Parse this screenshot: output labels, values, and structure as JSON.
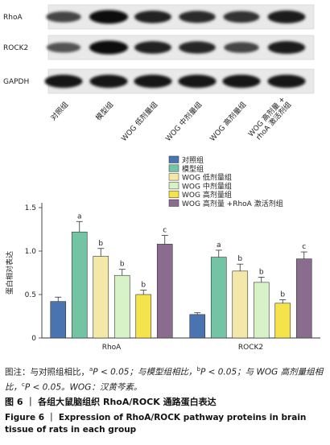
{
  "blot": {
    "rows": [
      {
        "label": "RhoA",
        "intensity": [
          0.55,
          1.0,
          0.8,
          0.75,
          0.7,
          0.88
        ]
      },
      {
        "label": "ROCK2",
        "intensity": [
          0.45,
          1.0,
          0.8,
          0.78,
          0.55,
          0.85
        ]
      },
      {
        "label": "GAPDH",
        "intensity": [
          0.9,
          0.92,
          0.92,
          0.92,
          0.92,
          0.92
        ]
      }
    ],
    "lanes": [
      "对照组",
      "模型组",
      "WOG 低剂量组",
      "WOG 中剂量组",
      "WOG 高剂量组",
      "WOG 高剂量 + rhoA 激活剂组"
    ]
  },
  "chart_data": {
    "type": "bar",
    "categories": [
      "RhoA",
      "ROCK2"
    ],
    "ylabel": "蛋白相对表达",
    "ylim": [
      0,
      1.5
    ],
    "yticks": [
      "0",
      "0.5",
      "1.0",
      "1.5"
    ],
    "legend_position": "top",
    "series": [
      {
        "name": "对照组",
        "color": "#4a74b0",
        "values": [
          0.42,
          0.27
        ],
        "errors": [
          0.05,
          0.02
        ],
        "sig": [
          "",
          ""
        ]
      },
      {
        "name": "模型组",
        "color": "#72c4a5",
        "values": [
          1.22,
          0.93
        ],
        "errors": [
          0.12,
          0.08
        ],
        "sig": [
          "a",
          "a"
        ]
      },
      {
        "name": "WOG 低剂量组",
        "color": "#f4e8a8",
        "values": [
          0.94,
          0.77
        ],
        "errors": [
          0.09,
          0.08
        ],
        "sig": [
          "b",
          "b"
        ]
      },
      {
        "name": "WOG 中剂量组",
        "color": "#d8f2c8",
        "values": [
          0.72,
          0.64
        ],
        "errors": [
          0.07,
          0.06
        ],
        "sig": [
          "b",
          "b"
        ]
      },
      {
        "name": "WOG 高剂量组",
        "color": "#f4e34a",
        "values": [
          0.5,
          0.4
        ],
        "errors": [
          0.05,
          0.04
        ],
        "sig": [
          "b",
          "b"
        ]
      },
      {
        "name": "WOG 高剂量 +RhoA 激活剂组",
        "color": "#8a6d8e",
        "values": [
          1.08,
          0.91
        ],
        "errors": [
          0.1,
          0.08
        ],
        "sig": [
          "c",
          "c"
        ]
      }
    ]
  },
  "caption": {
    "note_line1": "图注：与对照组相比，",
    "note_a": "a",
    "note_line1b": "P < 0.05；与模型组相比，",
    "note_b": "b",
    "note_line1c": "P < 0.05；与 WOG 高剂量组相比，",
    "note_c": "c",
    "note_line1d": "P < 0.05。WOG：汉黄芩素。",
    "fig_cn": "图 6 ｜ 各组大鼠脑组织 RhoA/ROCK 通路蛋白表达",
    "fig_en": "Figure 6 ｜ Expression of RhoA/ROCK pathway proteins in brain tissue of rats in each group"
  }
}
